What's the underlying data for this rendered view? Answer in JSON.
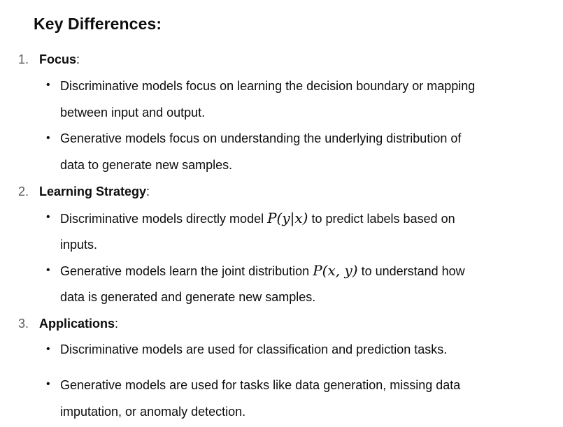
{
  "heading": "Key Differences:",
  "items": [
    {
      "number": "1.",
      "title": "Focus",
      "bullets": [
        {
          "lines": [
            "Discriminative models focus on learning the decision boundary or mapping",
            "between input and output."
          ]
        },
        {
          "lines": [
            "Generative models focus on understanding the underlying distribution of",
            "data to generate new samples."
          ]
        }
      ]
    },
    {
      "number": "2.",
      "title": "Learning Strategy",
      "bullets": [
        {
          "line1_before": "Discriminative models directly model ",
          "math": "P(y|x)",
          "line1_after": " to predict labels based on",
          "line2": "inputs."
        },
        {
          "line1_before": "Generative models learn the joint distribution ",
          "math": "P(x, y)",
          "line1_after": " to understand how",
          "line2": "data is generated and generate new samples."
        }
      ]
    },
    {
      "number": "3.",
      "title": "Applications",
      "bullets": [
        {
          "lines": [
            "Discriminative models are used for classification and prediction tasks."
          ]
        },
        {
          "lines": [
            "Generative models are used for tasks like data generation, missing data",
            "imputation, or anomaly detection."
          ]
        }
      ]
    }
  ],
  "colon": ":",
  "bullet_glyph": "•"
}
